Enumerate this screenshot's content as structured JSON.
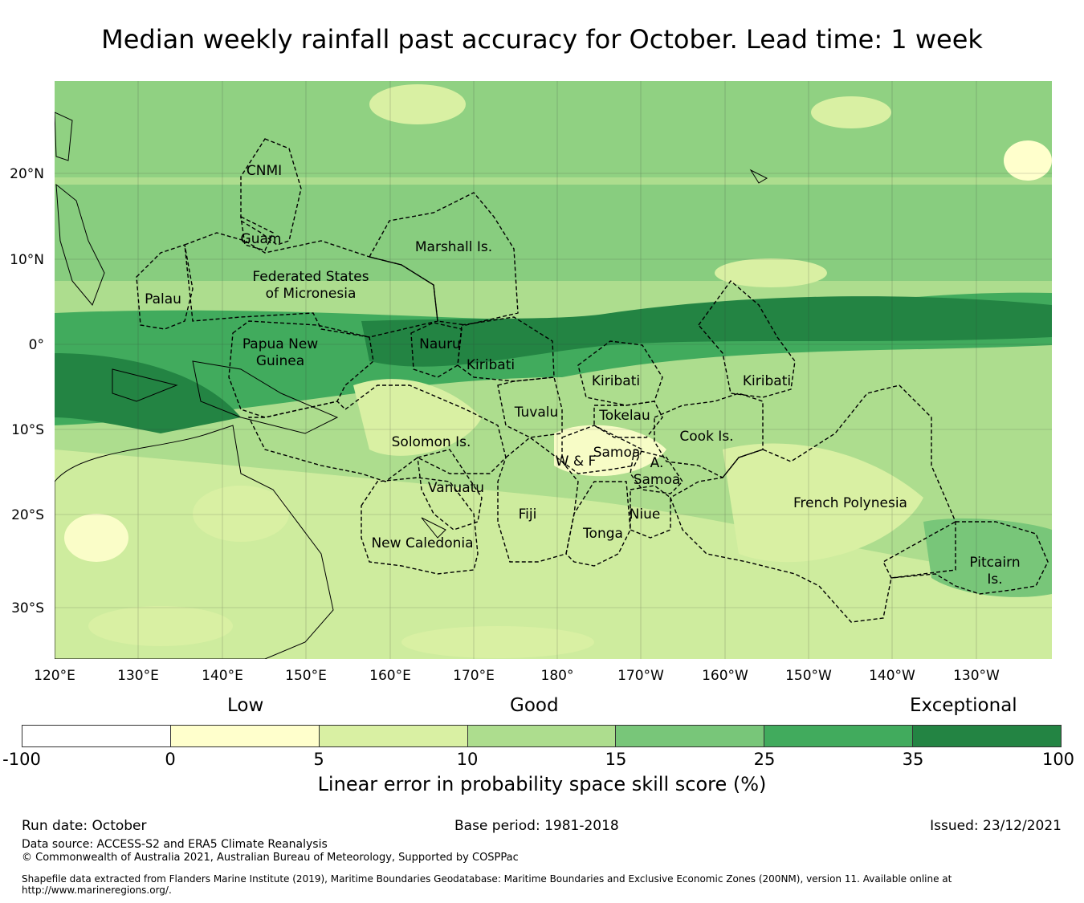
{
  "title": "Median weekly rainfall past accuracy for October. Lead time: 1 week",
  "map": {
    "lat_ticks": [
      "20°N",
      "10°N",
      "0°",
      "10°S",
      "20°S",
      "30°S"
    ],
    "lon_ticks": [
      "120°E",
      "130°E",
      "140°E",
      "150°E",
      "160°E",
      "170°E",
      "180°",
      "170°W",
      "160°W",
      "150°W",
      "140°W",
      "130°W"
    ],
    "regions": {
      "cnmi": "CNMI",
      "guam": "Guam",
      "marshall": "Marshall Is.",
      "fsm_1": "Federated States",
      "fsm_2": "of Micronesia",
      "palau": "Palau",
      "png_1": "Papua New",
      "png_2": "Guinea",
      "nauru": "Nauru",
      "kiribati_west": "Kiribati",
      "kiribati_central": "Kiribati",
      "kiribati_east": "Kiribati",
      "tuvalu": "Tuvalu",
      "tokelau": "Tokelau",
      "cook": "Cook Is.",
      "solomon": "Solomon Is.",
      "samoa": "Samoa",
      "wf": "W & F",
      "asamoa_1": "A.",
      "asamoa_2": "Samoa",
      "vanuatu": "Vanuatu",
      "fiji": "Fiji",
      "niue": "Niue",
      "tonga": "Tonga",
      "french_polynesia": "French Polynesia",
      "new_caledonia": "New Caledonia",
      "pitcairn_1": "Pitcairn",
      "pitcairn_2": "Is."
    }
  },
  "colorbar": {
    "categories": {
      "low": "Low",
      "good": "Good",
      "exceptional": "Exceptional"
    },
    "colors": [
      "#ffffff",
      "#ffffcc",
      "#d9f0a3",
      "#addd8e",
      "#78c679",
      "#41ab5d",
      "#238443"
    ],
    "ticks": [
      "-100",
      "0",
      "5",
      "10",
      "15",
      "25",
      "35",
      "100"
    ],
    "label": "Linear error in probability space skill score (%)"
  },
  "footer": {
    "run_date": "Run date: October",
    "base_period": "Base period: 1981-2018",
    "issued": "Issued: 23/12/2021",
    "data_source": "Data source: ACCESS-S2 and ERA5 Climate Reanalysis",
    "copyright": "© Commonwealth of Australia 2021, Australian Bureau of Meteorology, Supported by COSPPac",
    "shapefile": "Shapefile data extracted from Flanders Marine Institute (2019), Maritime Boundaries Geodatabase: Maritime Boundaries and Exclusive Economic Zones (200NM), version 11. Available online at http://www.marineregions.org/."
  }
}
